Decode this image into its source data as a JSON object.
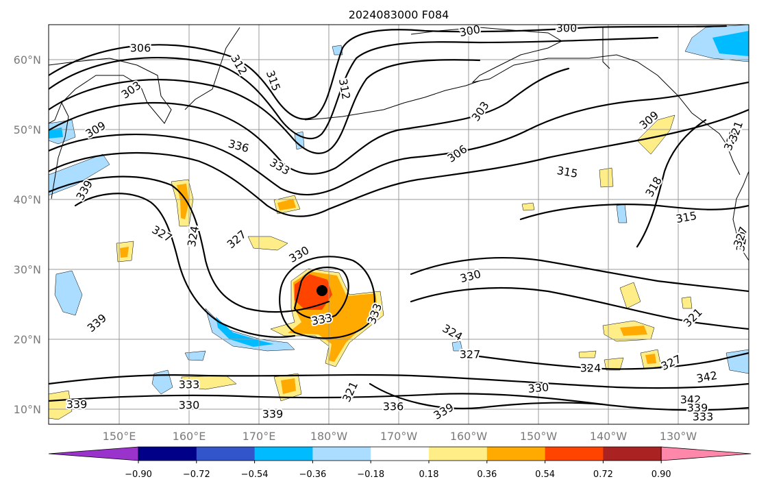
{
  "title": "2024083000 F084",
  "lat_labels": [
    "10°N",
    "20°N",
    "30°N",
    "40°N",
    "50°N",
    "60°N"
  ],
  "lon_labels": [
    "150°E",
    "160°E",
    "170°E",
    "180°W",
    "170°W",
    "160°W",
    "150°W",
    "140°W",
    "130°W"
  ],
  "colorbar": {
    "colors": [
      "#9933cc",
      "#000088",
      "#3355cc",
      "#00bbff",
      "#aaddff",
      "#ffffff",
      "#ffee88",
      "#ffaa00",
      "#ff4400",
      "#aa2222",
      "#ff88aa"
    ],
    "tick_labels": [
      "−0.90",
      "−0.72",
      "−0.54",
      "−0.36",
      "−0.18",
      "0.18",
      "0.36",
      "0.54",
      "0.72",
      "0.90"
    ]
  },
  "contour_labels": [
    "306",
    "312",
    "315",
    "303",
    "312",
    "300",
    "300",
    "309",
    "336",
    "333",
    "306",
    "303",
    "309",
    "315",
    "318",
    "321",
    "339",
    "327",
    "324",
    "327",
    "330",
    "315",
    "324",
    "330",
    "333",
    "333",
    "339",
    "324",
    "327",
    "321",
    "327",
    "324",
    "321",
    "327",
    "342",
    "333",
    "330",
    "321",
    "336",
    "339",
    "330",
    "339",
    "339",
    "342",
    "339",
    "333"
  ],
  "storm_marker": "black-dot"
}
